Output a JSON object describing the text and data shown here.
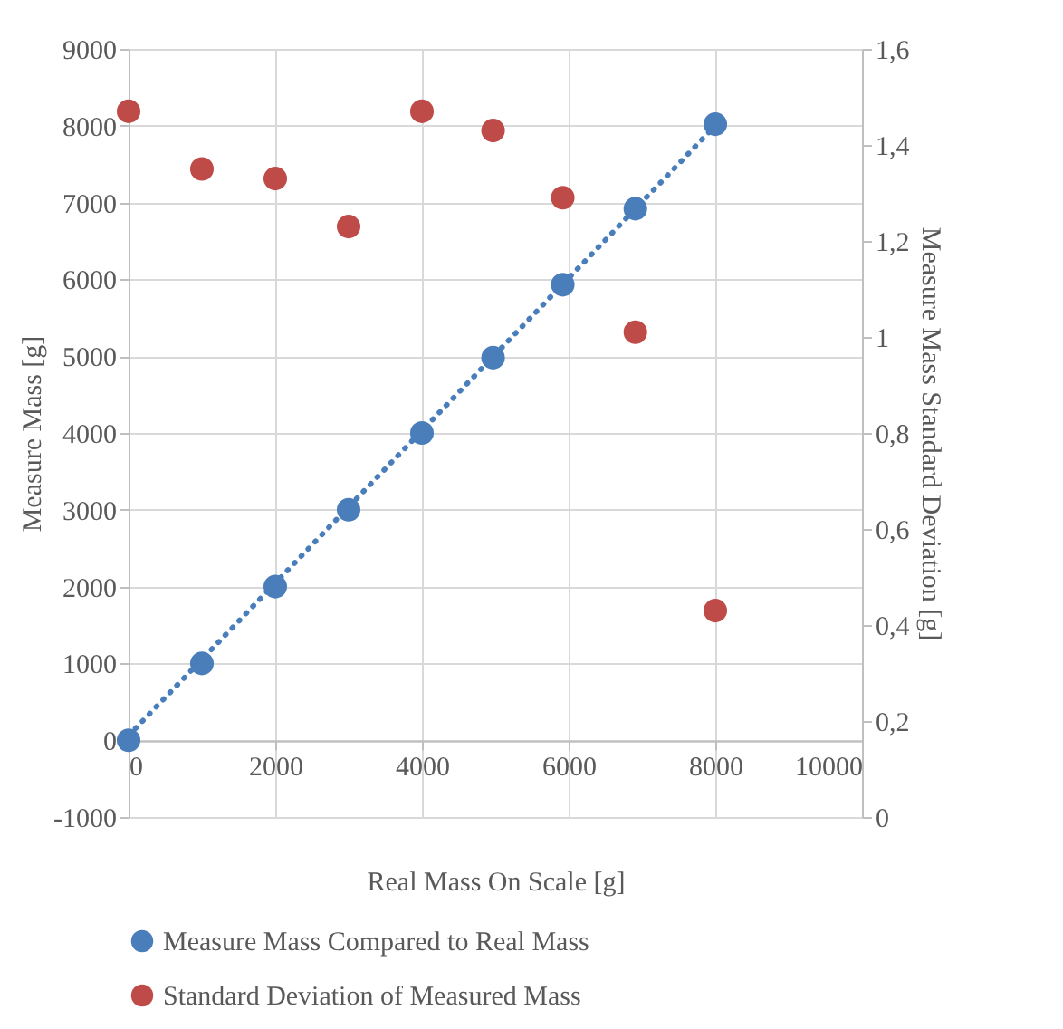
{
  "chart_data": {
    "type": "scatter",
    "xlabel": "Real Mass On Scale [g]",
    "ylabel": "Measure Mass [g]",
    "y2label": "Measure Mass Standard Deviation [g]",
    "x": [
      0,
      1000,
      2000,
      3000,
      4000,
      4970,
      5920,
      6910,
      8000
    ],
    "series": [
      {
        "name": "Measure Mass Compared to Real Mass",
        "color": "#4a7ebb",
        "values": [
          0,
          1000,
          2000,
          3000,
          4000,
          4980,
          5930,
          6920,
          8020
        ]
      },
      {
        "name": "Standard Deviation of Measured Mass",
        "color": "#be4b48",
        "axis": "y2",
        "values": [
          1.47,
          1.35,
          1.33,
          1.23,
          1.47,
          1.43,
          1.29,
          1.01,
          0.43
        ]
      },
      {
        "color": "#4a7ebb",
        "type": "line",
        "line_style": "dotted",
        "marker": "none",
        "x": [
          0,
          8000
        ],
        "values": [
          60,
          8000
        ]
      }
    ],
    "xlim": [
      0,
      10000
    ],
    "xticks": [
      0,
      2000,
      4000,
      6000,
      8000,
      10000
    ],
    "ylim": [
      -1000,
      9000
    ],
    "yticks": [
      -1000,
      0,
      1000,
      2000,
      3000,
      4000,
      5000,
      6000,
      7000,
      8000,
      9000
    ],
    "y2lim": [
      0,
      1.6
    ],
    "y2ticks": [
      0,
      {
        "value": 0.2,
        "label": "0,2"
      },
      {
        "value": 0.4,
        "label": "0,4"
      },
      {
        "value": 0.6,
        "label": "0,6"
      },
      {
        "value": 0.8,
        "label": "0,8"
      },
      1,
      {
        "value": 1.2,
        "label": "1,2"
      },
      {
        "value": 1.4,
        "label": "1,4"
      },
      {
        "value": 1.6,
        "label": "1,6"
      }
    ],
    "grid": true,
    "legend": "bottom",
    "marker": "circle"
  }
}
